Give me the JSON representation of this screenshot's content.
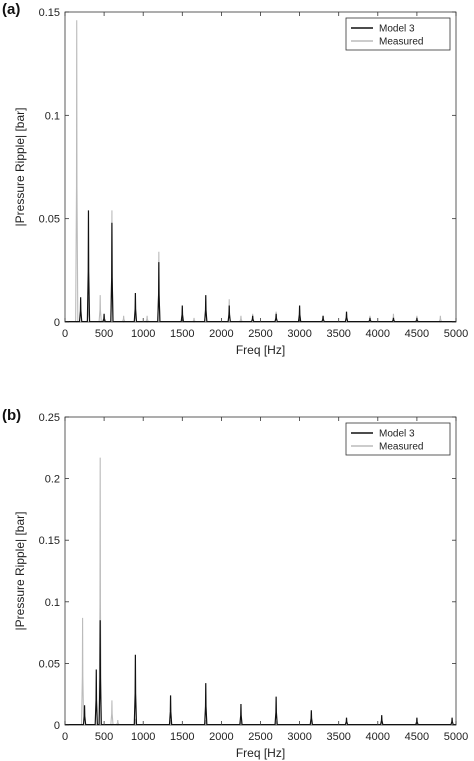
{
  "chart_data": [
    {
      "panel_label": "(a)",
      "type": "line",
      "xlabel": "Freq [Hz]",
      "ylabel": "|Pressure Ripple| [bar]",
      "xlim": [
        0,
        5000
      ],
      "ylim": [
        0,
        0.15
      ],
      "xticks": [
        0,
        500,
        1000,
        1500,
        2000,
        2500,
        3000,
        3500,
        4000,
        4500,
        5000
      ],
      "yticks": [
        0,
        0.05,
        0.1,
        0.15
      ],
      "ytick_labels": [
        "0",
        "0.05",
        "0.1",
        "0.15"
      ],
      "grid": false,
      "legend": "top-right",
      "series": [
        {
          "name": "Measured",
          "color": "#bbbbbb",
          "peaks": [
            [
              150,
              0.146
            ],
            [
              300,
              0.012
            ],
            [
              450,
              0.013
            ],
            [
              600,
              0.054
            ],
            [
              750,
              0.003
            ],
            [
              900,
              0.006
            ],
            [
              1050,
              0.003
            ],
            [
              1200,
              0.034
            ],
            [
              1500,
              0.004
            ],
            [
              1650,
              0.002
            ],
            [
              1800,
              0.01
            ],
            [
              2100,
              0.011
            ],
            [
              2250,
              0.003
            ],
            [
              2400,
              0.004
            ],
            [
              2700,
              0.005
            ],
            [
              3000,
              0.006
            ],
            [
              3300,
              0.003
            ],
            [
              3600,
              0.004
            ],
            [
              3900,
              0.003
            ],
            [
              4200,
              0.004
            ],
            [
              4500,
              0.003
            ],
            [
              4800,
              0.003
            ]
          ]
        },
        {
          "name": "Model 3",
          "color": "#111111",
          "peaks": [
            [
              200,
              0.012
            ],
            [
              300,
              0.054
            ],
            [
              500,
              0.004
            ],
            [
              600,
              0.048
            ],
            [
              900,
              0.014
            ],
            [
              1200,
              0.029
            ],
            [
              1500,
              0.008
            ],
            [
              1800,
              0.013
            ],
            [
              2100,
              0.008
            ],
            [
              2400,
              0.003
            ],
            [
              2700,
              0.004
            ],
            [
              3000,
              0.008
            ],
            [
              3300,
              0.003
            ],
            [
              3600,
              0.005
            ],
            [
              3900,
              0.002
            ],
            [
              4200,
              0.002
            ],
            [
              4500,
              0.002
            ]
          ]
        }
      ]
    },
    {
      "panel_label": "(b)",
      "type": "line",
      "xlabel": "Freq [Hz]",
      "ylabel": "|Pressure Ripple| [bar]",
      "xlim": [
        0,
        5000
      ],
      "ylim": [
        0,
        0.25
      ],
      "xticks": [
        0,
        500,
        1000,
        1500,
        2000,
        2500,
        3000,
        3500,
        4000,
        4500,
        5000
      ],
      "yticks": [
        0,
        0.05,
        0.1,
        0.15,
        0.2,
        0.25
      ],
      "ytick_labels": [
        "0",
        "0.05",
        "0.1",
        "0.15",
        "0.2",
        "0.25"
      ],
      "grid": false,
      "legend": "top-right",
      "series": [
        {
          "name": "Measured",
          "color": "#bbbbbb",
          "peaks": [
            [
              225,
              0.087
            ],
            [
              450,
              0.217
            ],
            [
              600,
              0.02
            ],
            [
              675,
              0.004
            ],
            [
              900,
              0.005
            ],
            [
              1350,
              0.004
            ],
            [
              1800,
              0.004
            ],
            [
              2250,
              0.003
            ],
            [
              2700,
              0.003
            ],
            [
              3150,
              0.003
            ],
            [
              3600,
              0.003
            ],
            [
              4050,
              0.003
            ],
            [
              4500,
              0.003
            ]
          ]
        },
        {
          "name": "Model 3",
          "color": "#111111",
          "peaks": [
            [
              250,
              0.016
            ],
            [
              400,
              0.045
            ],
            [
              450,
              0.085
            ],
            [
              900,
              0.057
            ],
            [
              1350,
              0.024
            ],
            [
              1800,
              0.034
            ],
            [
              2250,
              0.017
            ],
            [
              2700,
              0.023
            ],
            [
              3150,
              0.012
            ],
            [
              3600,
              0.006
            ],
            [
              4050,
              0.008
            ],
            [
              4500,
              0.006
            ],
            [
              4950,
              0.006
            ]
          ]
        }
      ]
    }
  ]
}
